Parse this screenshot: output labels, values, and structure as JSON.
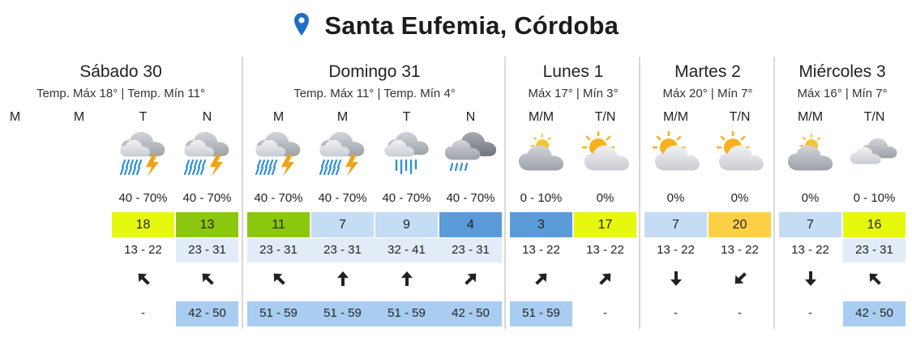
{
  "header": {
    "location": "Santa Eufemia, Córdoba",
    "icon": "location-pin-icon",
    "accent": "#1e6fc4"
  },
  "uv_colors": {
    "lime": "#e7f80f",
    "green": "#8cc710",
    "light_blue": "#c5dcf5",
    "blue": "#5a9bd8",
    "yellow": "#fccf47"
  },
  "days": [
    {
      "name": "Sábado 30",
      "temps": "Temp. Máx 18° | Temp. Mín 11°",
      "periods": [
        {
          "label": "M",
          "icon": "",
          "prob": "",
          "uv": "",
          "uv_color": "",
          "temp": "",
          "temp_shaded": false,
          "wind_dir": "",
          "gust": ""
        },
        {
          "label": "M",
          "icon": "",
          "prob": "",
          "uv": "",
          "uv_color": "",
          "temp": "",
          "temp_shaded": false,
          "wind_dir": "",
          "gust": ""
        },
        {
          "label": "T",
          "icon": "heavy-rain-thunder-icon",
          "prob": "40 - 70%",
          "uv": "18",
          "uv_color": "lime",
          "temp": "13 - 22",
          "temp_shaded": false,
          "wind_dir": "northwest-arrow-icon",
          "gust": "-"
        },
        {
          "label": "N",
          "icon": "heavy-rain-thunder-icon",
          "prob": "40 - 70%",
          "uv": "13",
          "uv_color": "green",
          "temp": "23 - 31",
          "temp_shaded": true,
          "wind_dir": "northwest-arrow-icon",
          "gust": "42 - 50"
        }
      ]
    },
    {
      "name": "Domingo 31",
      "temps": "Temp. Máx 11° | Temp. Mín 4°",
      "periods": [
        {
          "label": "M",
          "icon": "heavy-rain-thunder-icon",
          "prob": "40 - 70%",
          "uv": "11",
          "uv_color": "green",
          "temp": "23 - 31",
          "temp_shaded": true,
          "wind_dir": "northwest-arrow-icon",
          "gust": "51 - 59"
        },
        {
          "label": "M",
          "icon": "heavy-rain-thunder-icon",
          "prob": "40 - 70%",
          "uv": "7",
          "uv_color": "light_blue",
          "temp": "23 - 31",
          "temp_shaded": true,
          "wind_dir": "north-arrow-icon",
          "gust": "51 - 59"
        },
        {
          "label": "T",
          "icon": "cloud-rain-icon",
          "prob": "40 - 70%",
          "uv": "9",
          "uv_color": "light_blue",
          "temp": "32 - 41",
          "temp_shaded": true,
          "wind_dir": "north-arrow-icon",
          "gust": "51 - 59"
        },
        {
          "label": "N",
          "icon": "dark-cloud-drizzle-icon",
          "prob": "40 - 70%",
          "uv": "4",
          "uv_color": "blue",
          "temp": "23 - 31",
          "temp_shaded": true,
          "wind_dir": "northeast-arrow-icon",
          "gust": "42 - 50"
        }
      ]
    },
    {
      "name": "Lunes 1",
      "temps": "Máx 17° | Mín 3°",
      "periods": [
        {
          "label": "M/M",
          "icon": "cloud-faint-sun-icon",
          "prob": "0 - 10%",
          "uv": "3",
          "uv_color": "blue",
          "temp": "13 - 22",
          "temp_shaded": false,
          "wind_dir": "northeast-arrow-icon",
          "gust": "51 - 59"
        },
        {
          "label": "T/N",
          "icon": "sun-behind-cloud-icon",
          "prob": "0%",
          "uv": "17",
          "uv_color": "lime",
          "temp": "13 - 22",
          "temp_shaded": false,
          "wind_dir": "northeast-arrow-icon",
          "gust": "-"
        }
      ]
    },
    {
      "name": "Martes 2",
      "temps": "Máx 20° | Mín 7°",
      "periods": [
        {
          "label": "M/M",
          "icon": "sun-behind-cloud-icon",
          "prob": "0%",
          "uv": "7",
          "uv_color": "light_blue",
          "temp": "13 - 22",
          "temp_shaded": false,
          "wind_dir": "south-arrow-icon",
          "gust": "-"
        },
        {
          "label": "T/N",
          "icon": "sun-behind-cloud-icon",
          "prob": "0%",
          "uv": "20",
          "uv_color": "yellow",
          "temp": "13 - 22",
          "temp_shaded": false,
          "wind_dir": "southwest-arrow-icon",
          "gust": "-"
        }
      ]
    },
    {
      "name": "Miércoles 3",
      "temps": "Máx 16° | Mín 7°",
      "periods": [
        {
          "label": "M/M",
          "icon": "cloud-faint-sun-icon",
          "prob": "0%",
          "uv": "7",
          "uv_color": "light_blue",
          "temp": "13 - 22",
          "temp_shaded": false,
          "wind_dir": "south-arrow-icon",
          "gust": "-"
        },
        {
          "label": "T/N",
          "icon": "double-cloud-icon",
          "prob": "0 - 10%",
          "uv": "16",
          "uv_color": "lime",
          "temp": "23 - 31",
          "temp_shaded": true,
          "wind_dir": "northwest-arrow-icon",
          "gust": "42 - 50"
        }
      ]
    }
  ]
}
